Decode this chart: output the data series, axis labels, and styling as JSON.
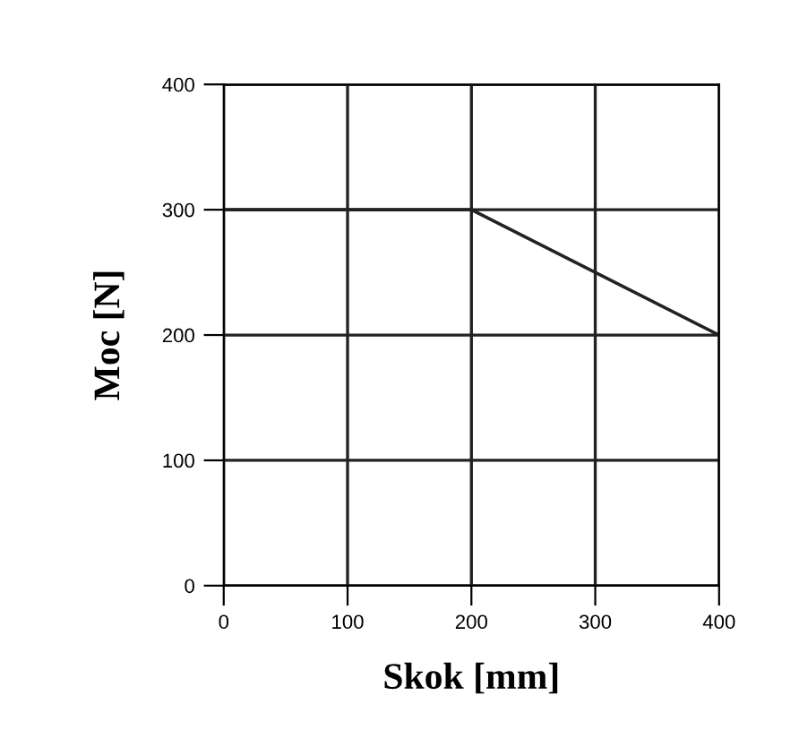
{
  "chart_data": {
    "type": "line",
    "xlabel": "Skok [mm]",
    "ylabel": "Moc [N]",
    "x": [
      0,
      200,
      400
    ],
    "series": [
      {
        "color": "#222222",
        "values": [
          300,
          300,
          200
        ]
      }
    ],
    "xlim": [
      0,
      400
    ],
    "ylim": [
      0,
      400
    ],
    "xticks": [
      0,
      100,
      200,
      300,
      400
    ],
    "yticks": [
      0,
      100,
      200,
      300,
      400
    ],
    "grid": true,
    "marker": "none",
    "line_style": "solid"
  }
}
